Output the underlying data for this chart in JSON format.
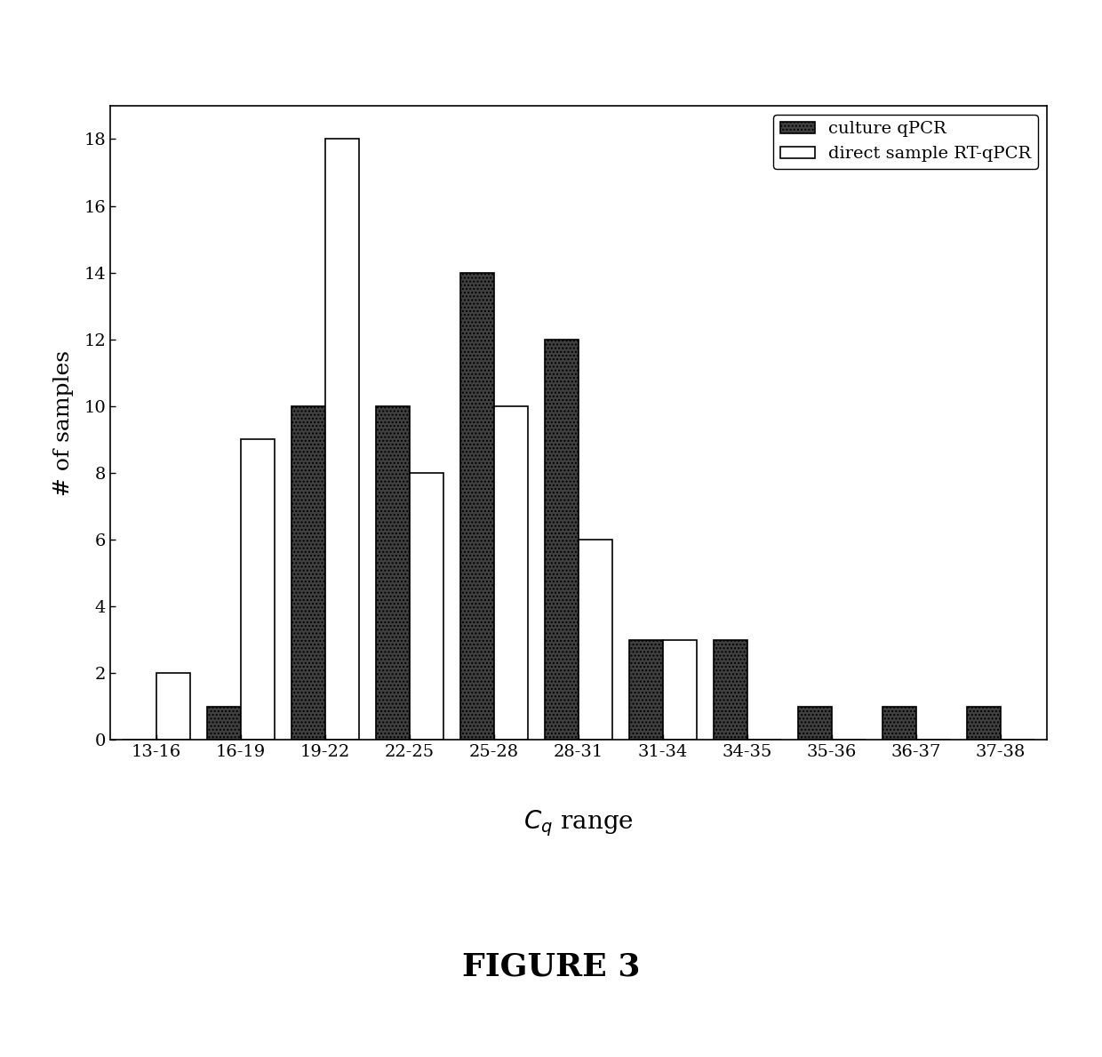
{
  "categories": [
    "13-16",
    "16-19",
    "19-22",
    "22-25",
    "25-28",
    "28-31",
    "31-34",
    "34-35",
    "35-36",
    "36-37",
    "37-38"
  ],
  "culture_qPCR": [
    0,
    1,
    10,
    10,
    14,
    12,
    3,
    3,
    1,
    1,
    1
  ],
  "direct_sample_RT_qPCR": [
    2,
    9,
    18,
    8,
    10,
    6,
    3,
    0,
    0,
    0,
    0
  ],
  "ylabel": "# of samples",
  "xlabel": "$C_q$ range",
  "ylim": [
    0,
    19
  ],
  "yticks": [
    0,
    2,
    4,
    6,
    8,
    10,
    12,
    14,
    16,
    18
  ],
  "legend_culture": "culture qPCR",
  "legend_direct": "direct sample RT-qPCR",
  "figure_caption": "FIGURE 3",
  "bar_color_culture": "#404040",
  "bar_color_direct": "#ffffff",
  "bar_edgecolor": "#000000",
  "bar_hatch_culture": "....",
  "background_color": "#ffffff",
  "figsize": [
    12.4,
    11.89
  ],
  "dpi": 100
}
